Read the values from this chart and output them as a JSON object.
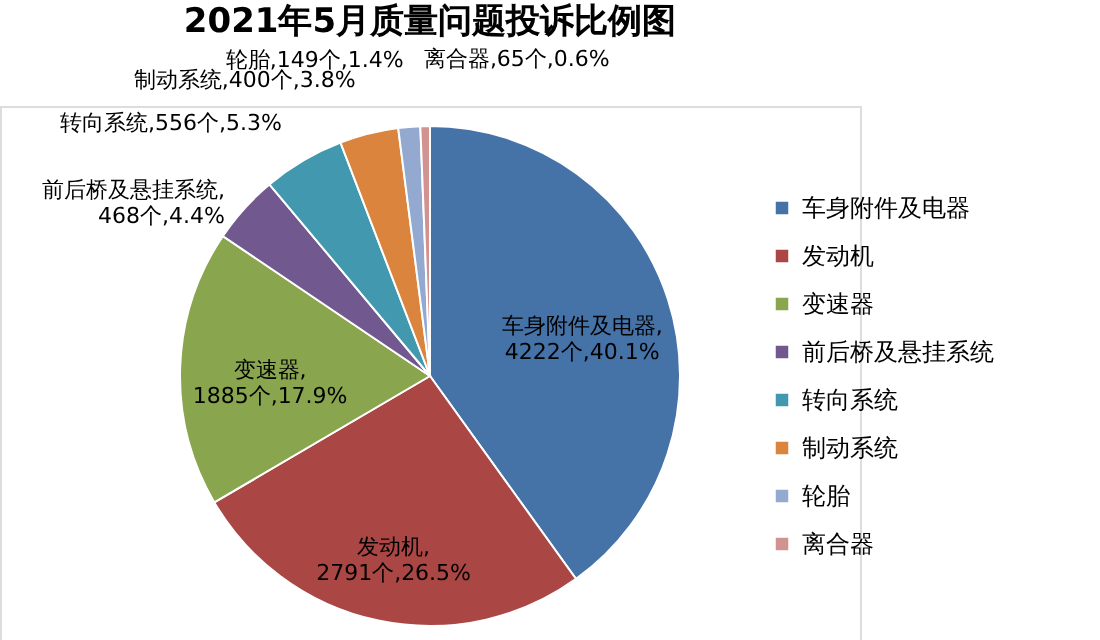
{
  "chart_data": {
    "type": "pie",
    "title": "2021年5月质量问题投诉比例图",
    "categories": [
      "车身附件及电器",
      "发动机",
      "变速器",
      "前后桥及悬挂系统",
      "转向系统",
      "制动系统",
      "轮胎",
      "离合器"
    ],
    "values": [
      4222,
      2791,
      1885,
      468,
      556,
      400,
      149,
      65
    ],
    "colors": [
      "#4572a7",
      "#aa4643",
      "#89a54e",
      "#71588f",
      "#4198af",
      "#db843d",
      "#93a9cf",
      "#d19392"
    ],
    "value_labels": [
      "车身附件及电器,4222个,40.1%",
      "发动机,2791个,26.5%",
      "变速器,1885个,17.9%",
      "前后桥及悬挂系统,468个,4.4%",
      "转向系统,556个,5.3%",
      "制动系统,400个,3.8%",
      "轮胎,149个,1.4%",
      "离合器,65个,0.6%"
    ],
    "legend": "right"
  }
}
